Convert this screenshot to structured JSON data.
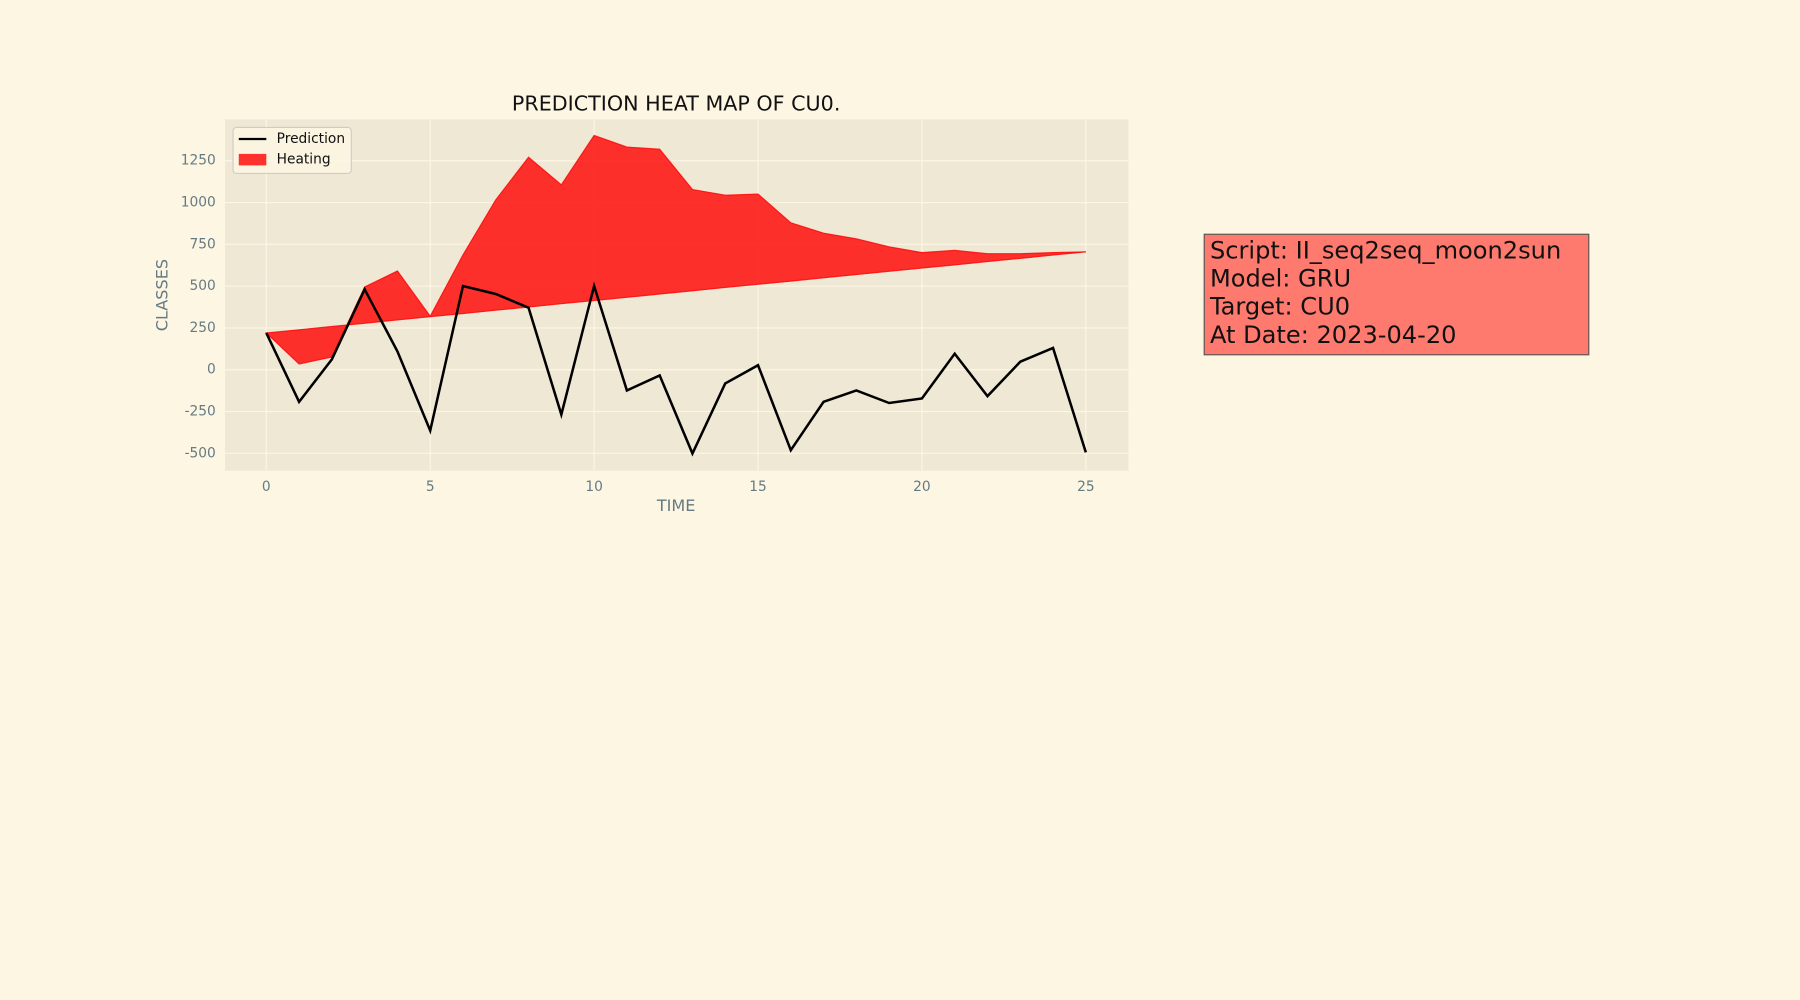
{
  "chart_data": {
    "type": "line",
    "title": "PREDICTION HEAT MAP OF CU0.",
    "xlabel": "TIME",
    "ylabel": "CLASSES",
    "x": [
      0,
      1,
      2,
      3,
      4,
      5,
      6,
      7,
      8,
      9,
      10,
      11,
      12,
      13,
      14,
      15,
      16,
      17,
      18,
      19,
      20,
      21,
      22,
      23,
      24,
      25
    ],
    "series": [
      {
        "name": "Prediction",
        "color": "#000000",
        "values": [
          220,
          -192,
          62,
          481,
          110,
          -364,
          501,
          453,
          371,
          -268,
          501,
          -124,
          -34,
          -501,
          -82,
          27,
          -481,
          -192,
          -124,
          -199,
          -172,
          96,
          -158,
          48,
          130,
          -494
        ]
      },
      {
        "name": "Heating",
        "color": "#ff0000",
        "fill": "area",
        "values": [
          220,
          34,
          76,
          495,
          591,
          320,
          687,
          1016,
          1271,
          1106,
          1401,
          1332,
          1319,
          1078,
          1044,
          1051,
          879,
          817,
          783,
          735,
          701,
          714,
          694,
          694,
          701,
          705
        ],
        "lower": [
          220,
          239,
          259,
          278,
          298,
          317,
          336,
          356,
          375,
          395,
          414,
          433,
          453,
          472,
          492,
          511,
          530,
          550,
          569,
          589,
          608,
          627,
          647,
          666,
          686,
          705
        ]
      }
    ],
    "xlim": [
      -1.26,
      26.3
    ],
    "ylim": [
      -604,
      1497
    ],
    "xticks": [
      0,
      5,
      10,
      15,
      20,
      25
    ],
    "yticks": [
      -500,
      -250,
      0,
      250,
      500,
      750,
      1000,
      1250
    ],
    "grid": true,
    "legend": "upper-left",
    "annotation": {
      "lines": [
        "Script: II_seq2seq_moon2sun",
        "Model: GRU",
        "Target: CU0",
        "At Date: 2023-04-20"
      ],
      "color": "#ff7a6e"
    }
  }
}
